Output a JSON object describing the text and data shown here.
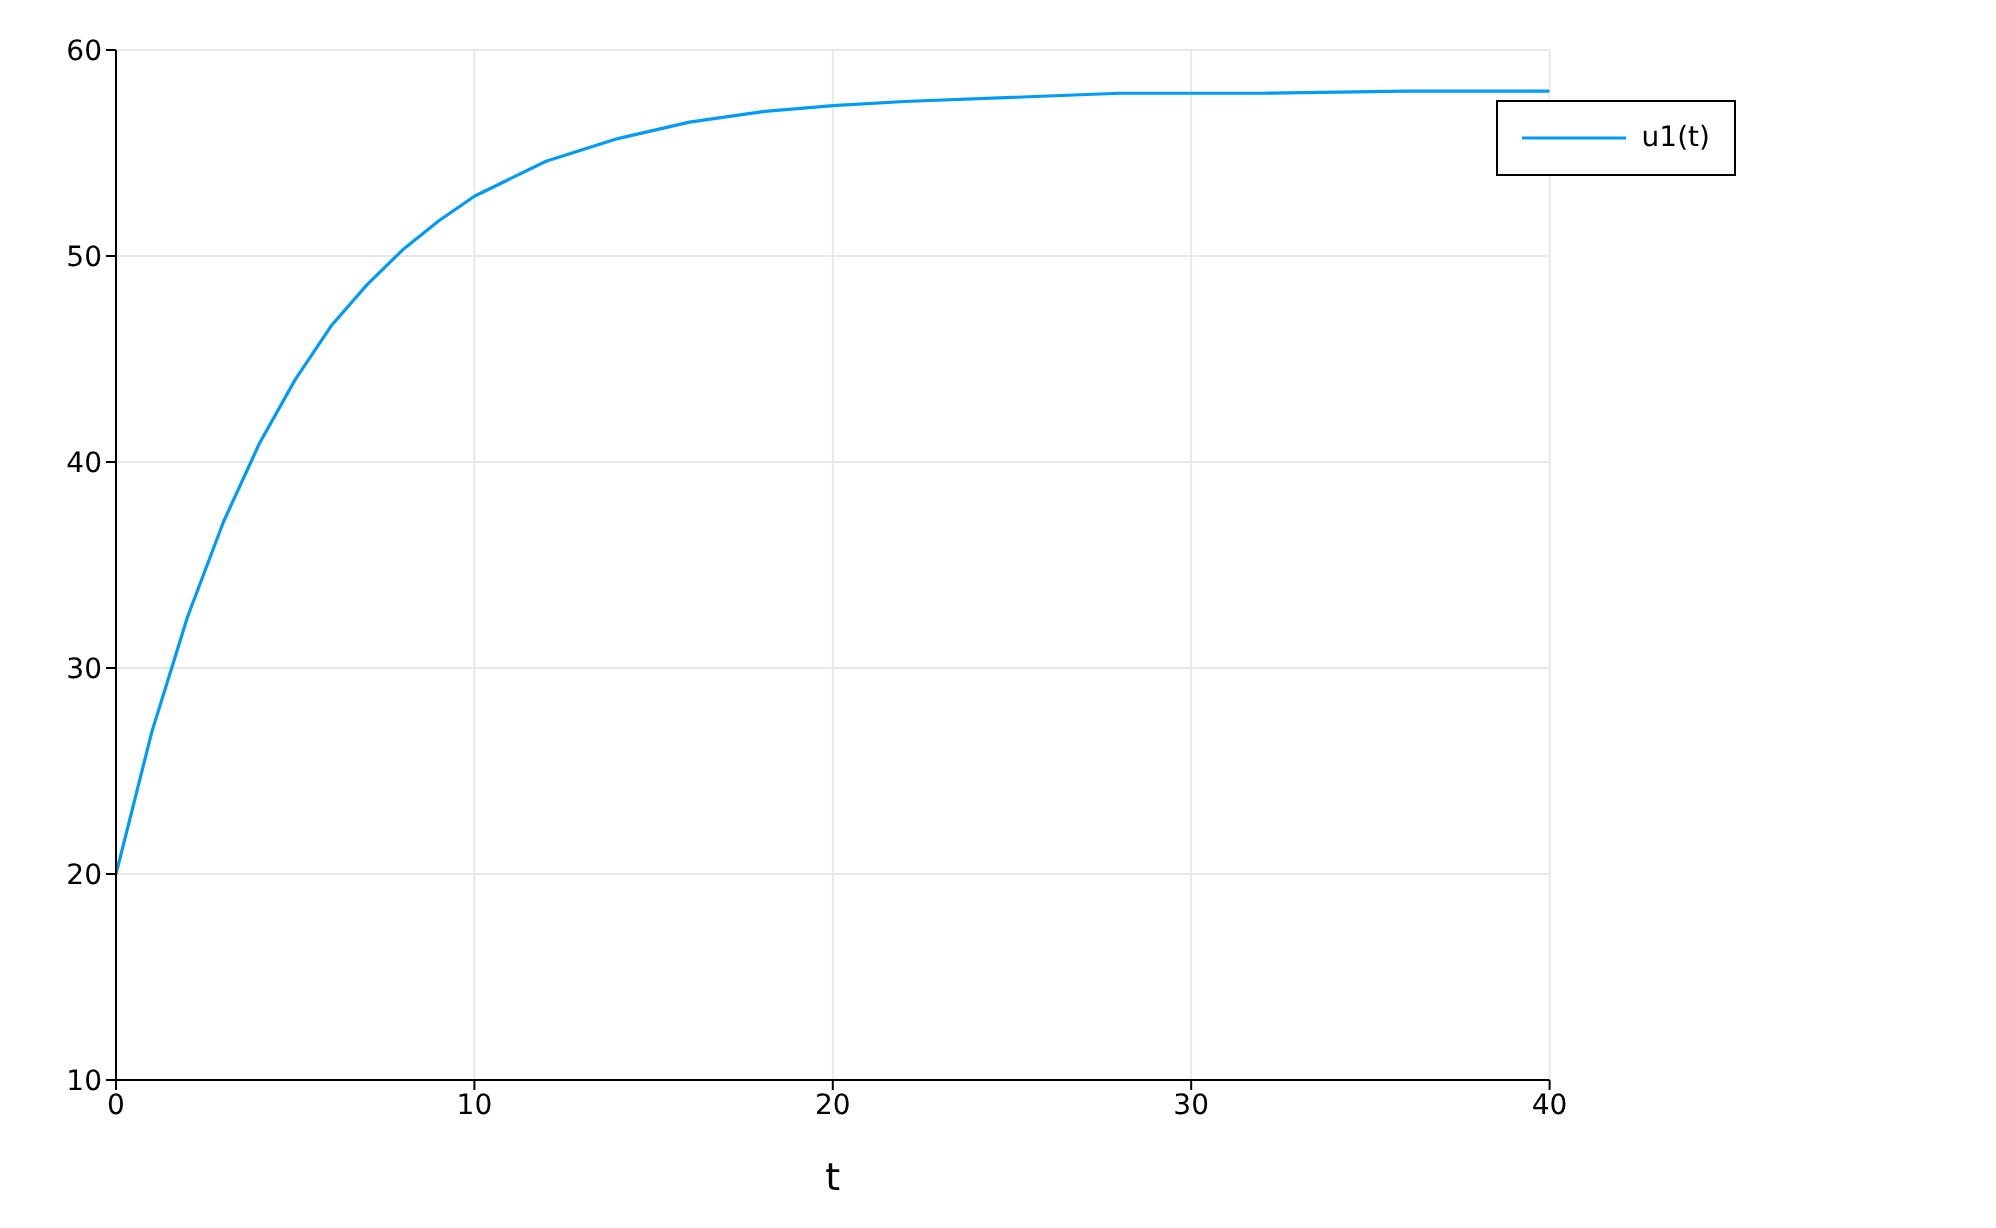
{
  "chart_data": {
    "type": "line",
    "xlabel": "t",
    "series": [
      {
        "name": "u1(t)",
        "color": "#009af9",
        "x": [
          0,
          1,
          2,
          3,
          4,
          5,
          6,
          7,
          8,
          9,
          10,
          12,
          14,
          16,
          18,
          20,
          22,
          25,
          28,
          32,
          36,
          40
        ],
        "values": [
          20,
          26.9,
          32.5,
          37.1,
          40.9,
          44.0,
          46.6,
          48.6,
          50.3,
          51.7,
          52.9,
          54.6,
          55.7,
          56.5,
          57.0,
          57.3,
          57.5,
          57.7,
          57.9,
          57.9,
          58.0,
          58.0
        ]
      }
    ],
    "xlim": [
      0,
      40
    ],
    "xticks": [
      0,
      10,
      20,
      30,
      40
    ],
    "ylim": [
      10,
      60
    ],
    "yticks": [
      10,
      20,
      30,
      40,
      50,
      60
    ],
    "grid": true,
    "legend": "top right",
    "marker": "none",
    "line_style": "solid"
  }
}
